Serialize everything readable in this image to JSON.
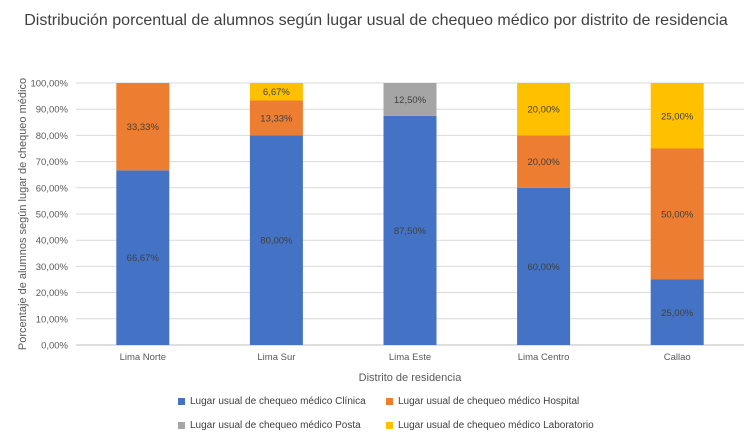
{
  "chart_data": {
    "type": "bar",
    "stacked": true,
    "title": "Distribución porcentual de alumnos según lugar usual de chequeo médico por distrito de residencia",
    "xlabel": "Distrito de residencia",
    "ylabel": "Porcentaje de alumnos según lugar de chequeo médico",
    "ylim": [
      0,
      100
    ],
    "ytick_labels": [
      "0,00%",
      "10,00%",
      "20,00%",
      "30,00%",
      "40,00%",
      "50,00%",
      "60,00%",
      "70,00%",
      "80,00%",
      "90,00%",
      "100,00%"
    ],
    "categories": [
      "Lima Norte",
      "Lima Sur",
      "Lima Este",
      "Lima Centro",
      "Callao"
    ],
    "series": [
      {
        "name": "Lugar usual de chequeo médico Clínica",
        "color": "#4472C4",
        "values": [
          66.67,
          80.0,
          87.5,
          60.0,
          25.0
        ],
        "labels": [
          "66,67%",
          "80,00%",
          "87,50%",
          "60,00%",
          "25,00%"
        ]
      },
      {
        "name": "Lugar usual de chequeo médico Hospital",
        "color": "#ED7D31",
        "values": [
          33.33,
          13.33,
          0,
          20.0,
          50.0
        ],
        "labels": [
          "33,33%",
          "13,33%",
          "",
          "20,00%",
          "50,00%"
        ]
      },
      {
        "name": "Lugar usual de chequeo médico Posta",
        "color": "#A5A5A5",
        "values": [
          0,
          0,
          12.5,
          0,
          0
        ],
        "labels": [
          "",
          "",
          "12,50%",
          "",
          ""
        ]
      },
      {
        "name": "Lugar usual de chequeo médico Laboratorio",
        "color": "#FFC000",
        "values": [
          0,
          6.67,
          0,
          20.0,
          25.0
        ],
        "labels": [
          "",
          "6,67%",
          "",
          "20,00%",
          "25,00%"
        ]
      }
    ],
    "grid": true,
    "legend_position": "bottom"
  }
}
